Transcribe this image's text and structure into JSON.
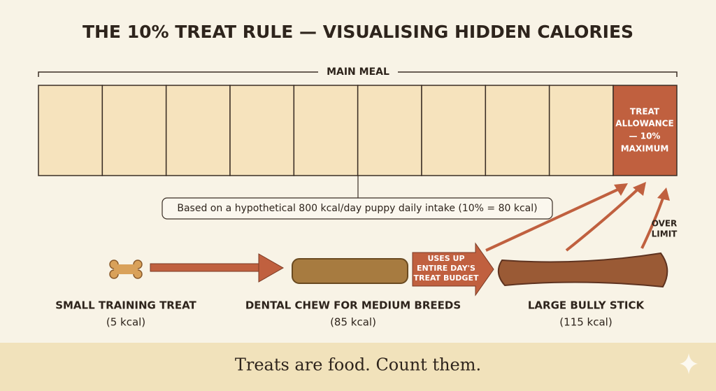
{
  "header": {
    "title": "THE 10% TREAT RULE — VISUALISING HIDDEN CALORIES"
  },
  "meal": {
    "label": "MAIN MEAL",
    "allowance": [
      "TREAT",
      "ALLOWANCE",
      "— 10%",
      "MAXIMUM"
    ],
    "note": "Based on a hypothetical 800 kcal/day puppy daily intake (10% = 80 kcal)"
  },
  "flow": {
    "budget_label": [
      "USES UP",
      "ENTIRE DAY'S",
      "TREAT BUDGET"
    ],
    "over_label": [
      "OVER",
      "LIMIT"
    ]
  },
  "treats": [
    {
      "name": "SMALL TRAINING TREAT",
      "kcal": "(5 kcal)"
    },
    {
      "name": "DENTAL CHEW FOR MEDIUM BREEDS",
      "kcal": "(85 kcal)"
    },
    {
      "name": "LARGE BULLY STICK",
      "kcal": "(115 kcal)"
    }
  ],
  "footer": {
    "text": "Treats are food. Count them."
  }
}
